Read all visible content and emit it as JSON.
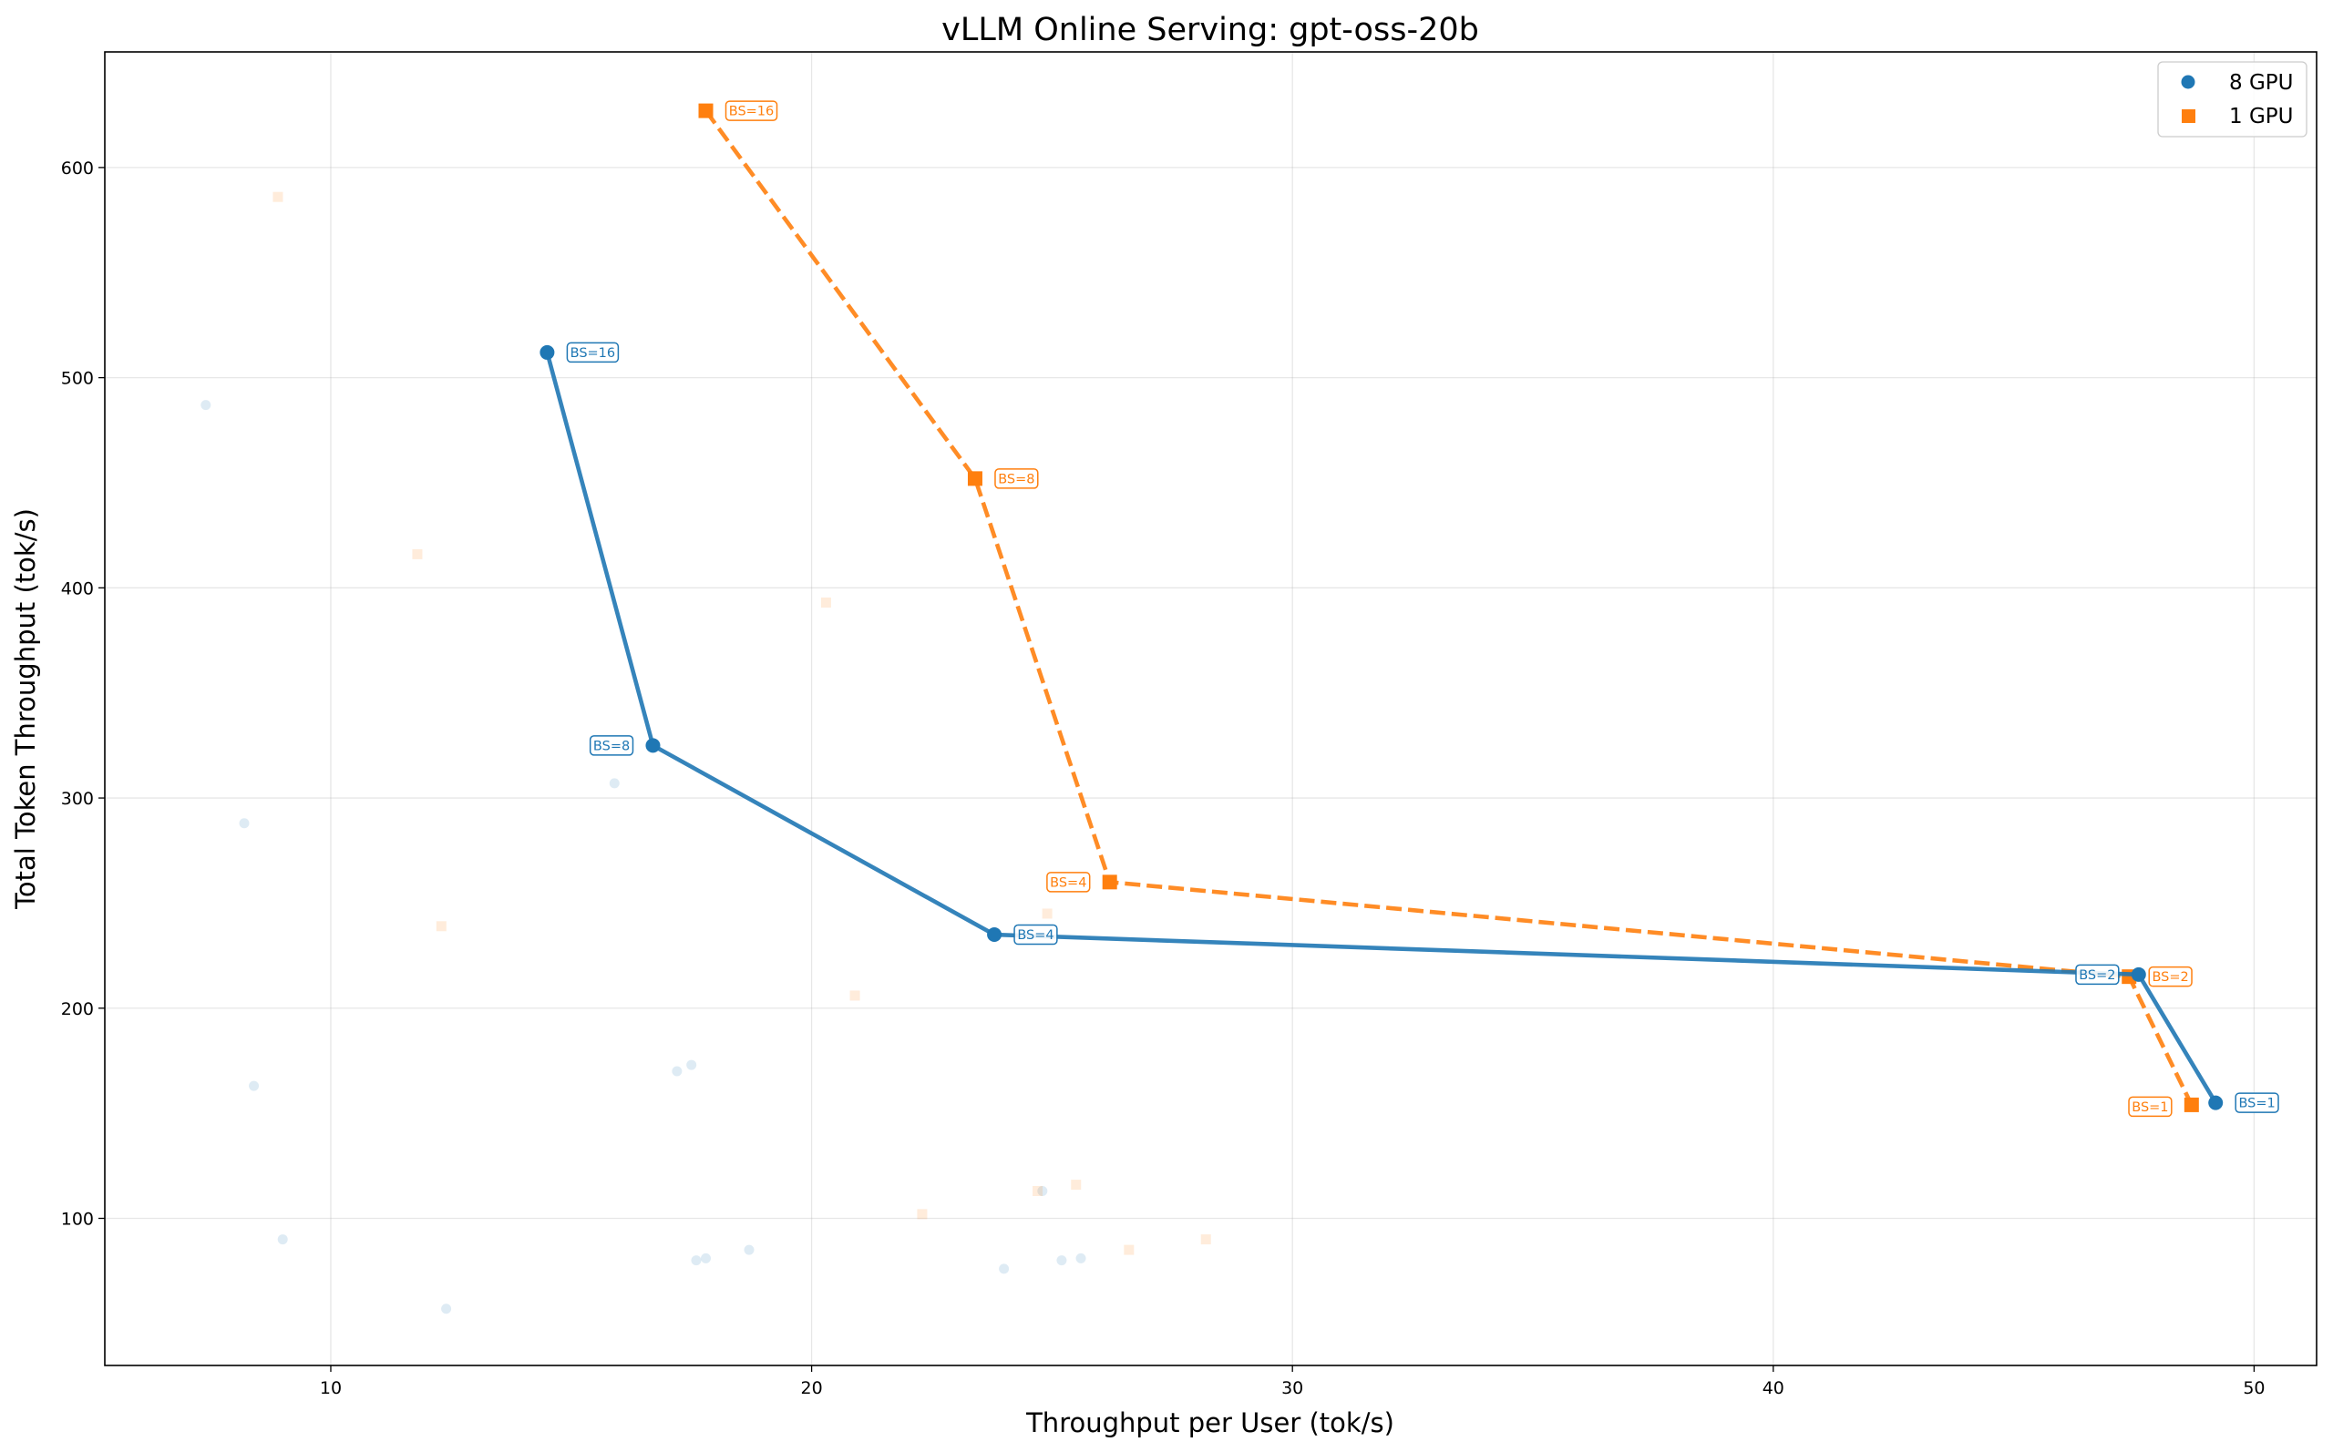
{
  "chart_data": {
    "type": "line",
    "title": "vLLM Online Serving: gpt-oss-20b",
    "xlabel": "Throughput per User (tok/s)",
    "ylabel": "Total Token Throughput (tok/s)",
    "xlim": [
      5.3,
      51.3
    ],
    "ylim": [
      30,
      655
    ],
    "xticks": [
      10,
      20,
      30,
      40,
      50
    ],
    "yticks": [
      100,
      200,
      300,
      400,
      500,
      600
    ],
    "grid": true,
    "legend_position": "top-right",
    "series": [
      {
        "name": "8 GPU",
        "color": "#1f77b4",
        "marker": "circle",
        "line_style": "solid",
        "points": [
          {
            "x": 14.5,
            "y": 512,
            "label": "BS=16"
          },
          {
            "x": 16.7,
            "y": 325,
            "label": "BS=8"
          },
          {
            "x": 23.8,
            "y": 235,
            "label": "BS=4"
          },
          {
            "x": 47.6,
            "y": 216,
            "label": "BS=2"
          },
          {
            "x": 49.2,
            "y": 155,
            "label": "BS=1"
          }
        ],
        "background_points": [
          {
            "x": 7.4,
            "y": 487
          },
          {
            "x": 8.2,
            "y": 288
          },
          {
            "x": 8.4,
            "y": 163
          },
          {
            "x": 9.0,
            "y": 90
          },
          {
            "x": 12.4,
            "y": 57
          },
          {
            "x": 15.9,
            "y": 307
          },
          {
            "x": 17.2,
            "y": 170
          },
          {
            "x": 17.5,
            "y": 173
          },
          {
            "x": 17.6,
            "y": 80
          },
          {
            "x": 17.8,
            "y": 81
          },
          {
            "x": 18.7,
            "y": 85
          },
          {
            "x": 24.0,
            "y": 76
          },
          {
            "x": 24.8,
            "y": 113
          },
          {
            "x": 25.2,
            "y": 80
          },
          {
            "x": 25.6,
            "y": 81
          }
        ]
      },
      {
        "name": "1 GPU",
        "color": "#ff7f0e",
        "marker": "square",
        "line_style": "dashed",
        "points": [
          {
            "x": 17.8,
            "y": 627,
            "label": "BS=16"
          },
          {
            "x": 23.4,
            "y": 452,
            "label": "BS=8"
          },
          {
            "x": 26.2,
            "y": 260,
            "label": "BS=4"
          },
          {
            "x": 47.4,
            "y": 215,
            "label": "BS=2"
          },
          {
            "x": 48.7,
            "y": 154,
            "label": "BS=1"
          }
        ],
        "background_points": [
          {
            "x": 8.9,
            "y": 586
          },
          {
            "x": 11.8,
            "y": 416
          },
          {
            "x": 12.3,
            "y": 239
          },
          {
            "x": 20.3,
            "y": 393
          },
          {
            "x": 20.9,
            "y": 206
          },
          {
            "x": 22.3,
            "y": 102
          },
          {
            "x": 24.7,
            "y": 113
          },
          {
            "x": 24.9,
            "y": 245
          },
          {
            "x": 25.5,
            "y": 116
          },
          {
            "x": 26.6,
            "y": 85
          },
          {
            "x": 28.2,
            "y": 90
          }
        ]
      }
    ]
  }
}
